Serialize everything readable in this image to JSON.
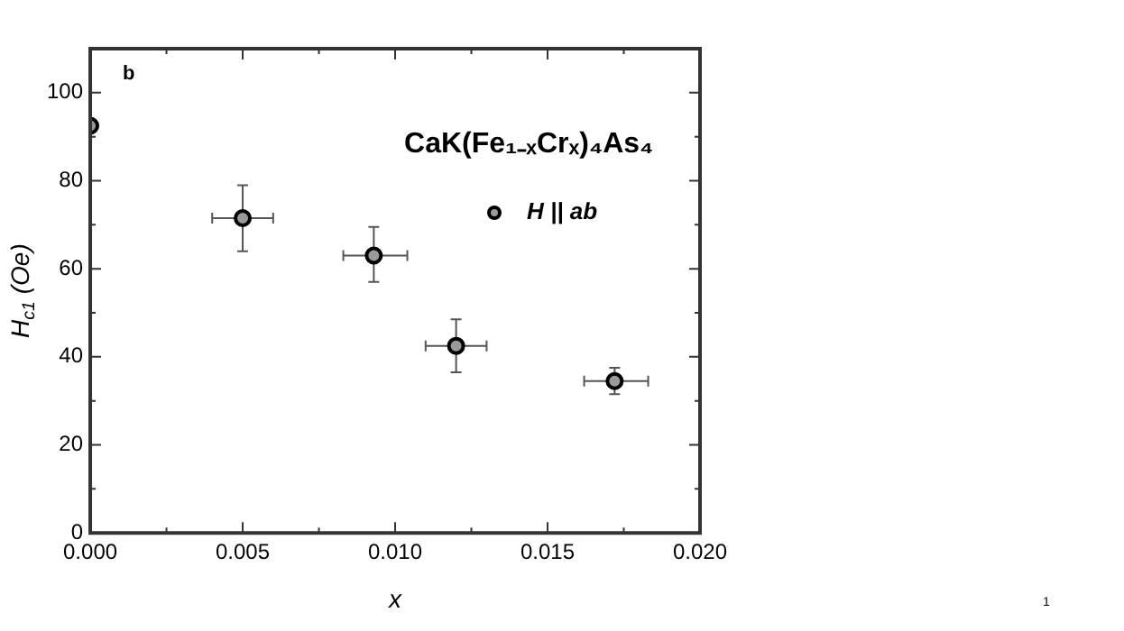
{
  "chart_data": {
    "type": "scatter",
    "xlabel": "x",
    "ylabel": "H$_{c1}$ (Oe)",
    "annotations": [
      "b",
      "CaK(Fe₁₋ₓCrₓ)₄As₄",
      "1"
    ],
    "series": [
      {
        "name": "H || ab",
        "color": "#9a9a9a",
        "x": [
          0,
          0.005,
          0.0093,
          0.012,
          0.0172
        ],
        "values": [
          92.5,
          71.5,
          63,
          42.5,
          34.5
        ],
        "errors": [
          null,
          [
            64,
            79
          ],
          [
            57,
            69.5
          ],
          [
            36.5,
            48.5
          ],
          [
            31.5,
            37.5
          ]
        ],
        "xerrors": [
          null,
          [
            0.004,
            0.006
          ],
          [
            0.0083,
            0.0104
          ],
          [
            0.011,
            0.013
          ],
          [
            0.0162,
            0.0183
          ]
        ]
      }
    ],
    "xlim": [
      0,
      0.02
    ],
    "xticks": [
      {
        "value": 0,
        "label": "0.000"
      },
      {
        "value": 0.0025,
        "label": null
      },
      {
        "value": 0.005,
        "label": "0.005"
      },
      {
        "value": 0.0075,
        "label": null
      },
      {
        "value": 0.01,
        "label": "0.010"
      },
      {
        "value": 0.0125,
        "label": null
      },
      {
        "value": 0.015,
        "label": "0.015"
      },
      {
        "value": 0.0175,
        "label": null
      },
      {
        "value": 0.02,
        "label": "0.020"
      }
    ],
    "ylim": [
      0,
      110
    ],
    "yticks": [
      0,
      {
        "value": 10,
        "label": null
      },
      20,
      {
        "value": 30,
        "label": null
      },
      40,
      {
        "value": 50,
        "label": null
      },
      60,
      {
        "value": 70,
        "label": null
      },
      80,
      {
        "value": 90,
        "label": null
      },
      100
    ],
    "grid": false,
    "legend": "top right",
    "marker": "circle"
  }
}
